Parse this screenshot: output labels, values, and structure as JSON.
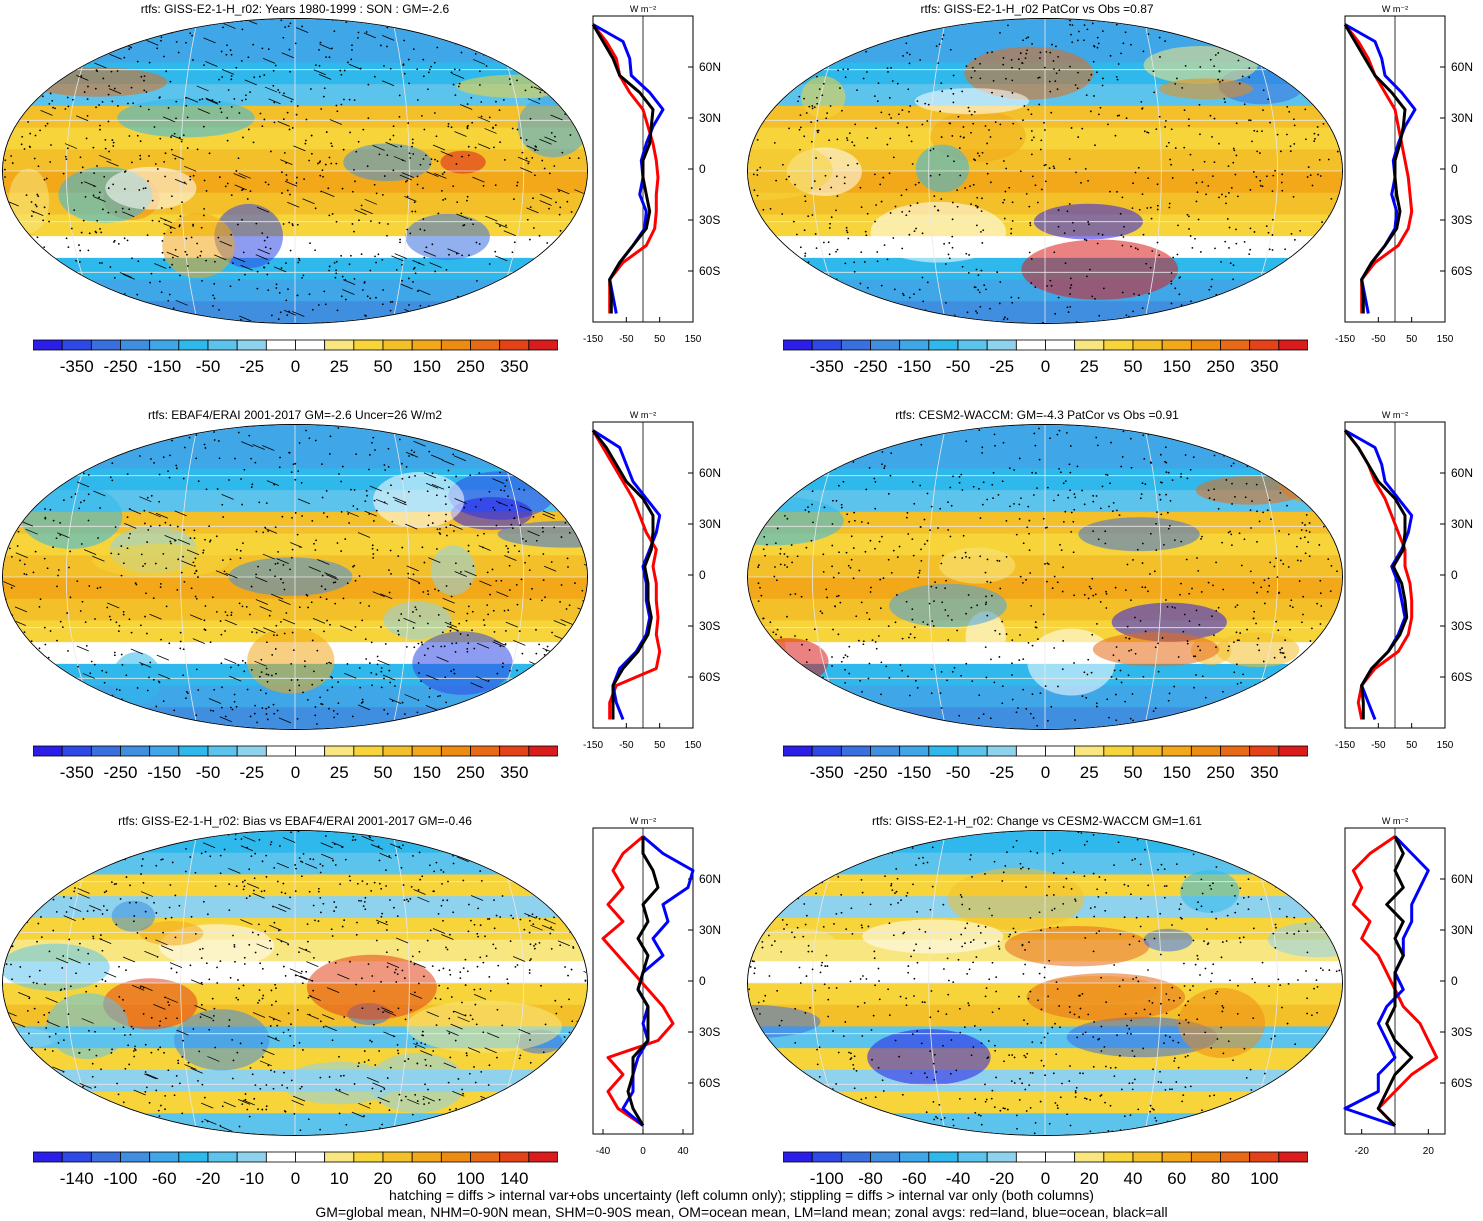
{
  "palette": [
    "#2b1ee8",
    "#2f49e6",
    "#3a6fe0",
    "#3f8ee0",
    "#3fa6e8",
    "#2fb8ec",
    "#5cc4ec",
    "#8ed2ee",
    "#ffffff",
    "#ffffff",
    "#f8e680",
    "#f6d43a",
    "#f4c02a",
    "#f2a818",
    "#ee8c12",
    "#e86a16",
    "#e44218",
    "#da1c1c"
  ],
  "zonal_colors": {
    "land": "#ff0000",
    "ocean": "#0000ff",
    "all": "#000000"
  },
  "panels": [
    {
      "title": "rtfs: GISS-E2-1-H_r02: Years 1980-1999 : SON : GM=-2.6",
      "cbar_labels": [
        "-350",
        "-250",
        "-150",
        "-50",
        "-25",
        "0",
        "25",
        "50",
        "150",
        "250",
        "350"
      ],
      "zonal_units": "W m⁻²",
      "zonal_xticks": [
        "-150",
        "-50",
        "50",
        "150"
      ],
      "zonal_yticks": [
        "60N",
        "30N",
        "0",
        "30S",
        "60S"
      ],
      "hatching": true
    },
    {
      "title": "rtfs: GISS-E2-1-H_r02 PatCor vs Obs =0.87",
      "cbar_labels": [
        "-350",
        "-250",
        "-150",
        "-50",
        "-25",
        "0",
        "25",
        "50",
        "150",
        "250",
        "350"
      ],
      "zonal_units": "W m⁻²",
      "zonal_xticks": [
        "-150",
        "-50",
        "50",
        "150"
      ],
      "zonal_yticks": [
        "60N",
        "30N",
        "0",
        "30S",
        "60S"
      ],
      "hatching": false
    },
    {
      "title": "rtfs: EBAF4/ERAI 2001-2017 GM=-2.6 Uncer=26 W/m2",
      "cbar_labels": [
        "-350",
        "-250",
        "-150",
        "-50",
        "-25",
        "0",
        "25",
        "50",
        "150",
        "250",
        "350"
      ],
      "zonal_units": "W m⁻²",
      "zonal_xticks": [
        "-150",
        "-50",
        "50",
        "150"
      ],
      "zonal_yticks": [
        "60N",
        "30N",
        "0",
        "30S",
        "60S"
      ],
      "hatching": true
    },
    {
      "title": "rtfs: CESM2-WACCM: GM=-4.3 PatCor vs Obs =0.91",
      "cbar_labels": [
        "-350",
        "-250",
        "-150",
        "-50",
        "-25",
        "0",
        "25",
        "50",
        "150",
        "250",
        "350"
      ],
      "zonal_units": "W m⁻²",
      "zonal_xticks": [
        "-150",
        "-50",
        "50",
        "150"
      ],
      "zonal_yticks": [
        "60N",
        "30N",
        "0",
        "30S",
        "60S"
      ],
      "hatching": false
    },
    {
      "title": "rtfs: GISS-E2-1-H_r02: Bias vs EBAF4/ERAI 2001-2017  GM=-0.46",
      "cbar_labels": [
        "-140",
        "-100",
        "-60",
        "-20",
        "-10",
        "0",
        "10",
        "20",
        "60",
        "100",
        "140"
      ],
      "zonal_units": "W m⁻²",
      "zonal_xticks": [
        "-40",
        "0",
        "40"
      ],
      "zonal_yticks": [
        "60N",
        "30N",
        "0",
        "30S",
        "60S"
      ],
      "hatching": true
    },
    {
      "title": "rtfs: GISS-E2-1-H_r02: Change vs CESM2-WACCM GM=1.61",
      "cbar_labels": [
        "-100",
        "-80",
        "-60",
        "-40",
        "-20",
        "0",
        "20",
        "40",
        "60",
        "80",
        "100"
      ],
      "zonal_units": "W m⁻²",
      "zonal_xticks": [
        "-20",
        "20"
      ],
      "zonal_yticks": [
        "60N",
        "30N",
        "0",
        "30S",
        "60S"
      ],
      "hatching": false
    }
  ],
  "footer": {
    "line1": "hatching = diffs > internal var+obs uncertainty (left column only); stippling = diffs > internal var only (both columns)",
    "line2": "GM=global mean, NHM=0-90N mean, SHM=0-90S mean, OM=ocean mean, LM=land mean; zonal avgs: red=land, blue=ocean, black=all"
  },
  "chart_data": [
    {
      "type": "heatmap",
      "title": "rtfs: GISS-E2-1-H_r02: Years 1980-1999 : SON : GM=-2.6",
      "colorbar_levels": [
        -350,
        -250,
        -150,
        -50,
        -25,
        0,
        25,
        50,
        150,
        250,
        350
      ]
    },
    {
      "type": "line",
      "name": "zonal mean panel 1",
      "x_label": "W m-2",
      "xlim": [
        -150,
        150
      ],
      "y_ticks": [
        "60N",
        "30N",
        "0",
        "30S",
        "60S"
      ],
      "lat": [
        85,
        75,
        65,
        55,
        45,
        35,
        25,
        15,
        5,
        -5,
        -15,
        -25,
        -35,
        -45,
        -55,
        -65,
        -75,
        -85
      ],
      "series": [
        {
          "name": "land",
          "values": [
            -150,
            -110,
            -80,
            -70,
            -40,
            0,
            15,
            30,
            40,
            45,
            40,
            40,
            35,
            10,
            -60,
            -100,
            -100,
            -100
          ]
        },
        {
          "name": "ocean",
          "values": [
            -150,
            -60,
            -40,
            -35,
            20,
            60,
            30,
            10,
            -5,
            0,
            -10,
            10,
            5,
            -30,
            -70,
            -100,
            -90,
            -80
          ]
        },
        {
          "name": "all",
          "values": [
            -150,
            -120,
            -90,
            -70,
            -10,
            30,
            25,
            20,
            0,
            0,
            10,
            20,
            10,
            -30,
            -70,
            -100,
            -95,
            -95
          ]
        }
      ]
    },
    {
      "type": "heatmap",
      "title": "rtfs: GISS-E2-1-H_r02 PatCor vs Obs =0.87",
      "colorbar_levels": [
        -350,
        -250,
        -150,
        -50,
        -25,
        0,
        25,
        50,
        150,
        250,
        350
      ]
    },
    {
      "type": "line",
      "name": "zonal mean panel 2",
      "x_label": "W m-2",
      "xlim": [
        -150,
        150
      ],
      "y_ticks": [
        "60N",
        "30N",
        "0",
        "30S",
        "60S"
      ],
      "lat": [
        85,
        75,
        65,
        55,
        45,
        35,
        25,
        15,
        5,
        -5,
        -15,
        -25,
        -35,
        -45,
        -55,
        -65,
        -75,
        -85
      ],
      "series": [
        {
          "name": "land",
          "values": [
            -150,
            -110,
            -80,
            -60,
            -30,
            0,
            10,
            20,
            30,
            40,
            45,
            50,
            40,
            10,
            -60,
            -100,
            -100,
            -100
          ]
        },
        {
          "name": "ocean",
          "values": [
            -150,
            -60,
            -40,
            -30,
            20,
            60,
            30,
            10,
            -5,
            0,
            -10,
            5,
            0,
            -30,
            -70,
            -100,
            -90,
            -80
          ]
        },
        {
          "name": "all",
          "values": [
            -150,
            -120,
            -90,
            -60,
            -10,
            30,
            25,
            15,
            0,
            0,
            5,
            15,
            5,
            -30,
            -70,
            -100,
            -95,
            -95
          ]
        }
      ]
    },
    {
      "type": "heatmap",
      "title": "rtfs: EBAF4/ERAI 2001-2017 GM=-2.6 Uncer=26 W/m2",
      "colorbar_levels": [
        -350,
        -250,
        -150,
        -50,
        -25,
        0,
        25,
        50,
        150,
        250,
        350
      ]
    },
    {
      "type": "line",
      "name": "zonal mean panel 3",
      "x_label": "W m-2",
      "xlim": [
        -150,
        150
      ],
      "y_ticks": [
        "60N",
        "30N",
        "0",
        "30S",
        "60S"
      ],
      "lat": [
        85,
        75,
        65,
        55,
        45,
        35,
        25,
        15,
        5,
        -5,
        -15,
        -25,
        -35,
        -45,
        -55,
        -65,
        -75,
        -85
      ],
      "series": [
        {
          "name": "land",
          "values": [
            -150,
            -120,
            -90,
            -60,
            -30,
            -10,
            10,
            40,
            30,
            40,
            40,
            45,
            40,
            50,
            40,
            -80,
            -100,
            -100
          ]
        },
        {
          "name": "ocean",
          "values": [
            -150,
            -70,
            -50,
            -30,
            10,
            50,
            40,
            20,
            0,
            10,
            10,
            20,
            10,
            -20,
            -70,
            -90,
            -80,
            -60
          ]
        },
        {
          "name": "all",
          "values": [
            -150,
            -110,
            -80,
            -50,
            0,
            30,
            30,
            25,
            5,
            15,
            15,
            25,
            15,
            -15,
            -60,
            -90,
            -90,
            -90
          ]
        }
      ]
    },
    {
      "type": "heatmap",
      "title": "rtfs: CESM2-WACCM: GM=-4.3 PatCor vs Obs =0.91",
      "colorbar_levels": [
        -350,
        -250,
        -150,
        -50,
        -25,
        0,
        25,
        50,
        150,
        250,
        350
      ]
    },
    {
      "type": "line",
      "name": "zonal mean panel 4",
      "x_label": "W m-2",
      "xlim": [
        -150,
        150
      ],
      "y_ticks": [
        "60N",
        "30N",
        "0",
        "30S",
        "60S"
      ],
      "lat": [
        85,
        75,
        65,
        55,
        45,
        35,
        25,
        15,
        5,
        -5,
        -15,
        -25,
        -35,
        -45,
        -55,
        -65,
        -75,
        -85
      ],
      "series": [
        {
          "name": "land",
          "values": [
            -150,
            -110,
            -80,
            -60,
            -30,
            -10,
            10,
            30,
            30,
            45,
            50,
            50,
            40,
            10,
            -60,
            -100,
            -110,
            -100
          ]
        },
        {
          "name": "ocean",
          "values": [
            -150,
            -60,
            -40,
            -30,
            10,
            50,
            40,
            20,
            -10,
            10,
            20,
            30,
            10,
            -20,
            -70,
            -100,
            -80,
            -60
          ]
        },
        {
          "name": "all",
          "values": [
            -150,
            -110,
            -80,
            -50,
            0,
            30,
            30,
            25,
            -5,
            20,
            30,
            35,
            15,
            -20,
            -70,
            -100,
            -95,
            -95
          ]
        }
      ]
    },
    {
      "type": "heatmap",
      "title": "rtfs: GISS-E2-1-H_r02: Bias vs EBAF4/ERAI 2001-2017  GM=-0.46",
      "colorbar_levels": [
        -140,
        -100,
        -60,
        -20,
        -10,
        0,
        10,
        20,
        60,
        100,
        140
      ]
    },
    {
      "type": "line",
      "name": "zonal mean panel 5",
      "x_label": "W m-2",
      "xlim": [
        -50,
        50
      ],
      "y_ticks": [
        "60N",
        "30N",
        "0",
        "30S",
        "60S"
      ],
      "lat": [
        85,
        75,
        65,
        55,
        45,
        35,
        25,
        15,
        5,
        -5,
        -15,
        -25,
        -35,
        -45,
        -55,
        -65,
        -75,
        -85
      ],
      "series": [
        {
          "name": "land",
          "values": [
            0,
            -20,
            -30,
            -20,
            -35,
            -20,
            -40,
            -25,
            -10,
            5,
            20,
            30,
            15,
            -35,
            -20,
            -35,
            -25,
            0
          ]
        },
        {
          "name": "ocean",
          "values": [
            0,
            20,
            50,
            45,
            20,
            25,
            10,
            20,
            0,
            -5,
            5,
            0,
            5,
            -5,
            -10,
            -10,
            -20,
            0
          ]
        },
        {
          "name": "all",
          "values": [
            0,
            0,
            10,
            15,
            0,
            5,
            -5,
            5,
            0,
            -5,
            5,
            5,
            5,
            -10,
            -10,
            -15,
            -10,
            0
          ]
        }
      ]
    },
    {
      "type": "heatmap",
      "title": "rtfs: GISS-E2-1-H_r02: Change vs CESM2-WACCM GM=1.61",
      "colorbar_levels": [
        -100,
        -80,
        -60,
        -40,
        -20,
        0,
        20,
        40,
        60,
        80,
        100
      ]
    },
    {
      "type": "line",
      "name": "zonal mean panel 6",
      "x_label": "W m-2",
      "xlim": [
        -30,
        30
      ],
      "y_ticks": [
        "60N",
        "30N",
        "0",
        "30S",
        "60S"
      ],
      "lat": [
        85,
        75,
        65,
        55,
        45,
        35,
        25,
        15,
        5,
        -5,
        -15,
        -25,
        -35,
        -45,
        -55,
        -65,
        -75,
        -85
      ],
      "series": [
        {
          "name": "land",
          "values": [
            0,
            -15,
            -25,
            -20,
            -25,
            -15,
            -20,
            -10,
            -5,
            0,
            5,
            15,
            20,
            25,
            10,
            0,
            -10,
            0
          ]
        },
        {
          "name": "ocean",
          "values": [
            0,
            10,
            20,
            15,
            10,
            10,
            5,
            5,
            0,
            5,
            -5,
            -10,
            -5,
            0,
            -10,
            -10,
            -30,
            0
          ]
        },
        {
          "name": "all",
          "values": [
            0,
            5,
            0,
            5,
            -5,
            5,
            0,
            5,
            0,
            0,
            0,
            -5,
            0,
            10,
            0,
            -5,
            -10,
            0
          ]
        }
      ]
    }
  ]
}
